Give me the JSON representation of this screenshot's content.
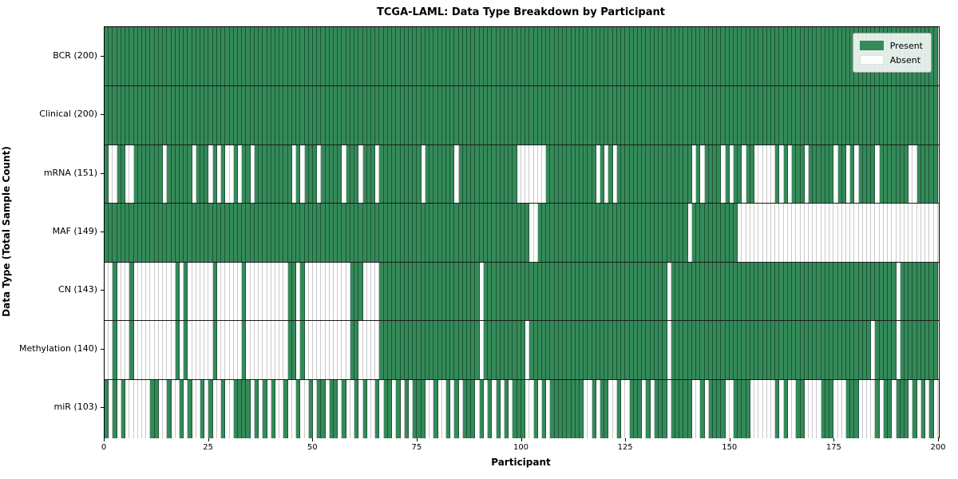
{
  "title": "TCGA-LAML: Data Type Breakdown by Participant",
  "chart_data": {
    "type": "heatmap",
    "title": "TCGA-LAML: Data Type Breakdown by Participant",
    "xlabel": "Participant",
    "ylabel": "Data Type (Total Sample Count)",
    "x_range": [
      0,
      200
    ],
    "n_participants": 200,
    "x_ticks": [
      0,
      25,
      50,
      75,
      100,
      125,
      150,
      175,
      200
    ],
    "grid": false,
    "cell_states": {
      "present": "Present",
      "absent": "Absent"
    },
    "colors": {
      "present": "#348a59",
      "present_edge": "#1d5434",
      "absent": "#ffffff",
      "absent_edge": "#c9c9c9",
      "row_divider": "#1a1a1a",
      "plot_border": "#000000"
    },
    "legend": {
      "position": "upper right",
      "entries": [
        {
          "label": "Present",
          "color": "#348a59"
        },
        {
          "label": "Absent",
          "color": "#ffffff"
        }
      ]
    },
    "rows": [
      {
        "label": "BCR (200)",
        "data_type": "BCR",
        "present_count": 200,
        "absent_participants": []
      },
      {
        "label": "Clinical (200)",
        "data_type": "Clinical",
        "present_count": 200,
        "absent_participants": []
      },
      {
        "label": "mRNA (151)",
        "data_type": "mRNA",
        "present_count": 151,
        "absent_participants": [
          1,
          2,
          5,
          6,
          14,
          21,
          25,
          27,
          29,
          30,
          32,
          35,
          45,
          47,
          51,
          57,
          61,
          65,
          76,
          84,
          99,
          100,
          101,
          102,
          103,
          104,
          105,
          118,
          120,
          122,
          141,
          143,
          148,
          150,
          153,
          156,
          157,
          158,
          159,
          160,
          162,
          164,
          168,
          175,
          178,
          180,
          185,
          193,
          194
        ]
      },
      {
        "label": "MAF (149)",
        "data_type": "MAF",
        "present_count": 149,
        "absent_participants": [
          102,
          103,
          140,
          152,
          153,
          154,
          155,
          156,
          157,
          158,
          159,
          160,
          161,
          162,
          163,
          164,
          165,
          166,
          167,
          168,
          169,
          170,
          171,
          172,
          173,
          174,
          175,
          176,
          177,
          178,
          179,
          180,
          181,
          182,
          183,
          184,
          185,
          186,
          187,
          188,
          189,
          190,
          191,
          192,
          193,
          194,
          195,
          196,
          197,
          198,
          199
        ]
      },
      {
        "label": "CN (143)",
        "data_type": "CN",
        "present_count": 143,
        "absent_participants": [
          0,
          1,
          3,
          4,
          5,
          7,
          8,
          9,
          10,
          11,
          12,
          13,
          14,
          15,
          16,
          18,
          20,
          21,
          22,
          23,
          24,
          25,
          27,
          28,
          29,
          30,
          31,
          32,
          34,
          35,
          36,
          37,
          38,
          39,
          40,
          41,
          42,
          43,
          46,
          48,
          49,
          50,
          51,
          52,
          53,
          54,
          55,
          56,
          57,
          58,
          62,
          63,
          64,
          65,
          90,
          135,
          190
        ]
      },
      {
        "label": "Methylation (140)",
        "data_type": "Methylation",
        "present_count": 140,
        "absent_participants": [
          0,
          1,
          3,
          4,
          5,
          7,
          8,
          9,
          10,
          11,
          12,
          13,
          14,
          15,
          16,
          18,
          20,
          21,
          22,
          23,
          24,
          25,
          27,
          28,
          29,
          30,
          31,
          32,
          34,
          35,
          36,
          37,
          38,
          39,
          40,
          41,
          42,
          43,
          46,
          48,
          49,
          50,
          51,
          52,
          53,
          54,
          55,
          56,
          57,
          58,
          61,
          62,
          63,
          64,
          65,
          90,
          101,
          135,
          184,
          190
        ]
      },
      {
        "label": "miR (103)",
        "data_type": "miR",
        "present_count": 103,
        "absent_participants": [
          1,
          3,
          5,
          6,
          7,
          8,
          9,
          10,
          13,
          14,
          16,
          17,
          19,
          21,
          22,
          24,
          26,
          27,
          29,
          30,
          35,
          37,
          39,
          41,
          42,
          44,
          45,
          47,
          48,
          50,
          53,
          56,
          58,
          59,
          61,
          63,
          64,
          66,
          69,
          71,
          73,
          77,
          78,
          80,
          81,
          83,
          85,
          89,
          91,
          93,
          95,
          97,
          101,
          102,
          104,
          106,
          115,
          116,
          118,
          121,
          122,
          124,
          125,
          129,
          131,
          135,
          141,
          142,
          144,
          149,
          150,
          155,
          156,
          157,
          158,
          159,
          160,
          162,
          164,
          165,
          168,
          169,
          170,
          171,
          175,
          176,
          177,
          181,
          182,
          183,
          184,
          186,
          189,
          193,
          195,
          197,
          199
        ]
      }
    ]
  }
}
